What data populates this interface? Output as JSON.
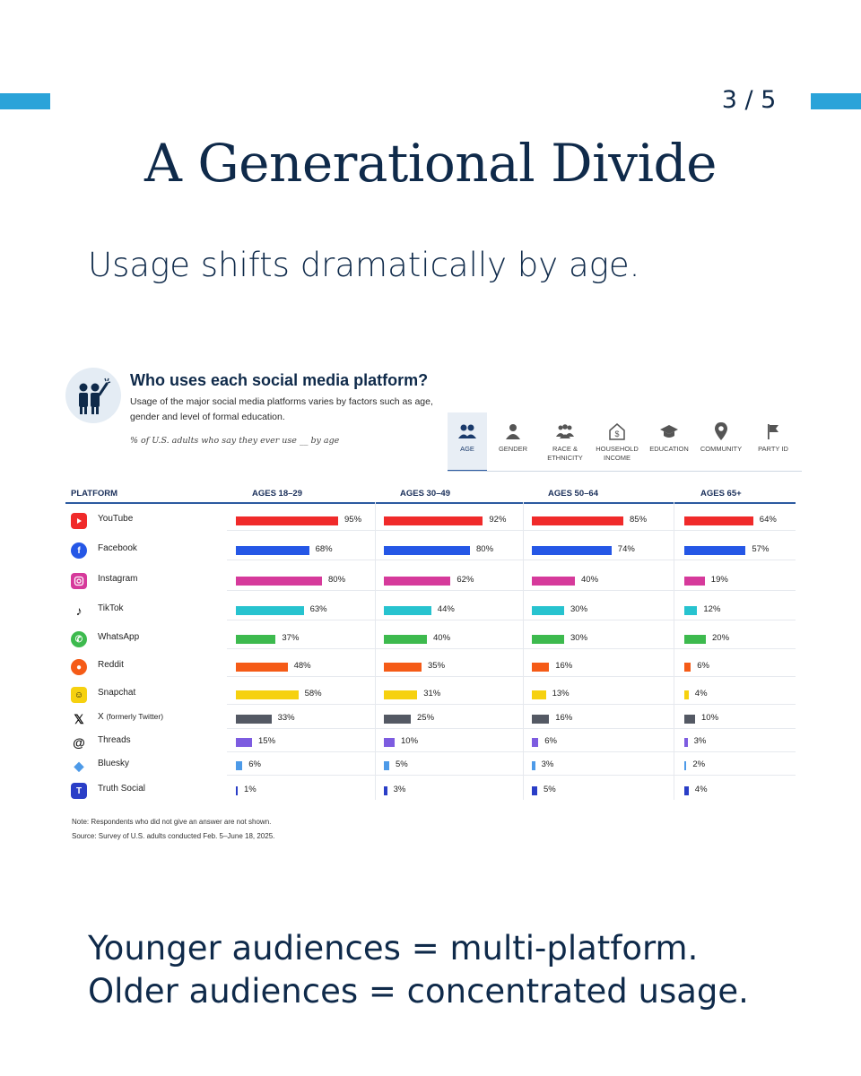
{
  "page_number": "3 / 5",
  "title": "A Generational Divide",
  "subtitle": "Usage shifts dramatically by age.",
  "bottom_lines": [
    "Younger audiences = multi-platform.",
    "Older audiences = concentrated usage."
  ],
  "colors": {
    "accent": "#2aa3d9",
    "title": "#0f2a4a"
  },
  "panel": {
    "title": "Who uses each social media platform?",
    "description": "Usage of the major social media platforms varies by factors such as age, gender and level of formal education.",
    "question": "% of U.S. adults who say they ever use __ by age",
    "tabs": [
      {
        "label": "AGE",
        "icon": "people-icon",
        "active": true
      },
      {
        "label": "GENDER",
        "icon": "person-icon",
        "active": false
      },
      {
        "label": "RACE & ETHNICITY",
        "icon": "group-icon",
        "active": false
      },
      {
        "label": "HOUSEHOLD INCOME",
        "icon": "house-dollar-icon",
        "active": false
      },
      {
        "label": "EDUCATION",
        "icon": "graduation-cap-icon",
        "active": false
      },
      {
        "label": "COMMUNITY",
        "icon": "map-pin-icon",
        "active": false
      },
      {
        "label": "PARTY ID",
        "icon": "flag-icon",
        "active": false
      }
    ],
    "platform_header": "PLATFORM",
    "note": "Note: Respondents who did not give an answer are not shown.",
    "source": "Source: Survey of U.S. adults conducted Feb. 5–June 18, 2025."
  },
  "chart_data": {
    "type": "bar",
    "title": "Who uses each social media platform?",
    "categories": [
      "YouTube",
      "Facebook",
      "Instagram",
      "TikTok",
      "WhatsApp",
      "Reddit",
      "Snapchat",
      "X (formerly Twitter)",
      "Threads",
      "Bluesky",
      "Truth Social"
    ],
    "category_colors": [
      "#f02a2a",
      "#2557e6",
      "#d63a9b",
      "#27c3cf",
      "#3dba4e",
      "#f55b17",
      "#f6d10f",
      "#545964",
      "#7d5ce0",
      "#4d9ae8",
      "#2a3ec7"
    ],
    "category_icons": [
      "youtube-icon",
      "facebook-icon",
      "instagram-icon",
      "tiktok-icon",
      "whatsapp-icon",
      "reddit-icon",
      "snapchat-icon",
      "x-icon",
      "threads-icon",
      "bluesky-icon",
      "truth-social-icon"
    ],
    "series": [
      {
        "name": "AGES 18–29",
        "values": [
          95,
          68,
          80,
          63,
          37,
          48,
          58,
          33,
          15,
          6,
          1
        ]
      },
      {
        "name": "AGES 30–49",
        "values": [
          92,
          80,
          62,
          44,
          40,
          35,
          31,
          25,
          10,
          5,
          3
        ]
      },
      {
        "name": "AGES 50–64",
        "values": [
          85,
          74,
          40,
          30,
          30,
          16,
          13,
          16,
          6,
          3,
          5
        ]
      },
      {
        "name": "AGES 65+",
        "values": [
          64,
          57,
          19,
          12,
          20,
          6,
          4,
          10,
          3,
          2,
          4
        ]
      }
    ],
    "value_suffix": "%",
    "ylim": [
      0,
      100
    ]
  }
}
